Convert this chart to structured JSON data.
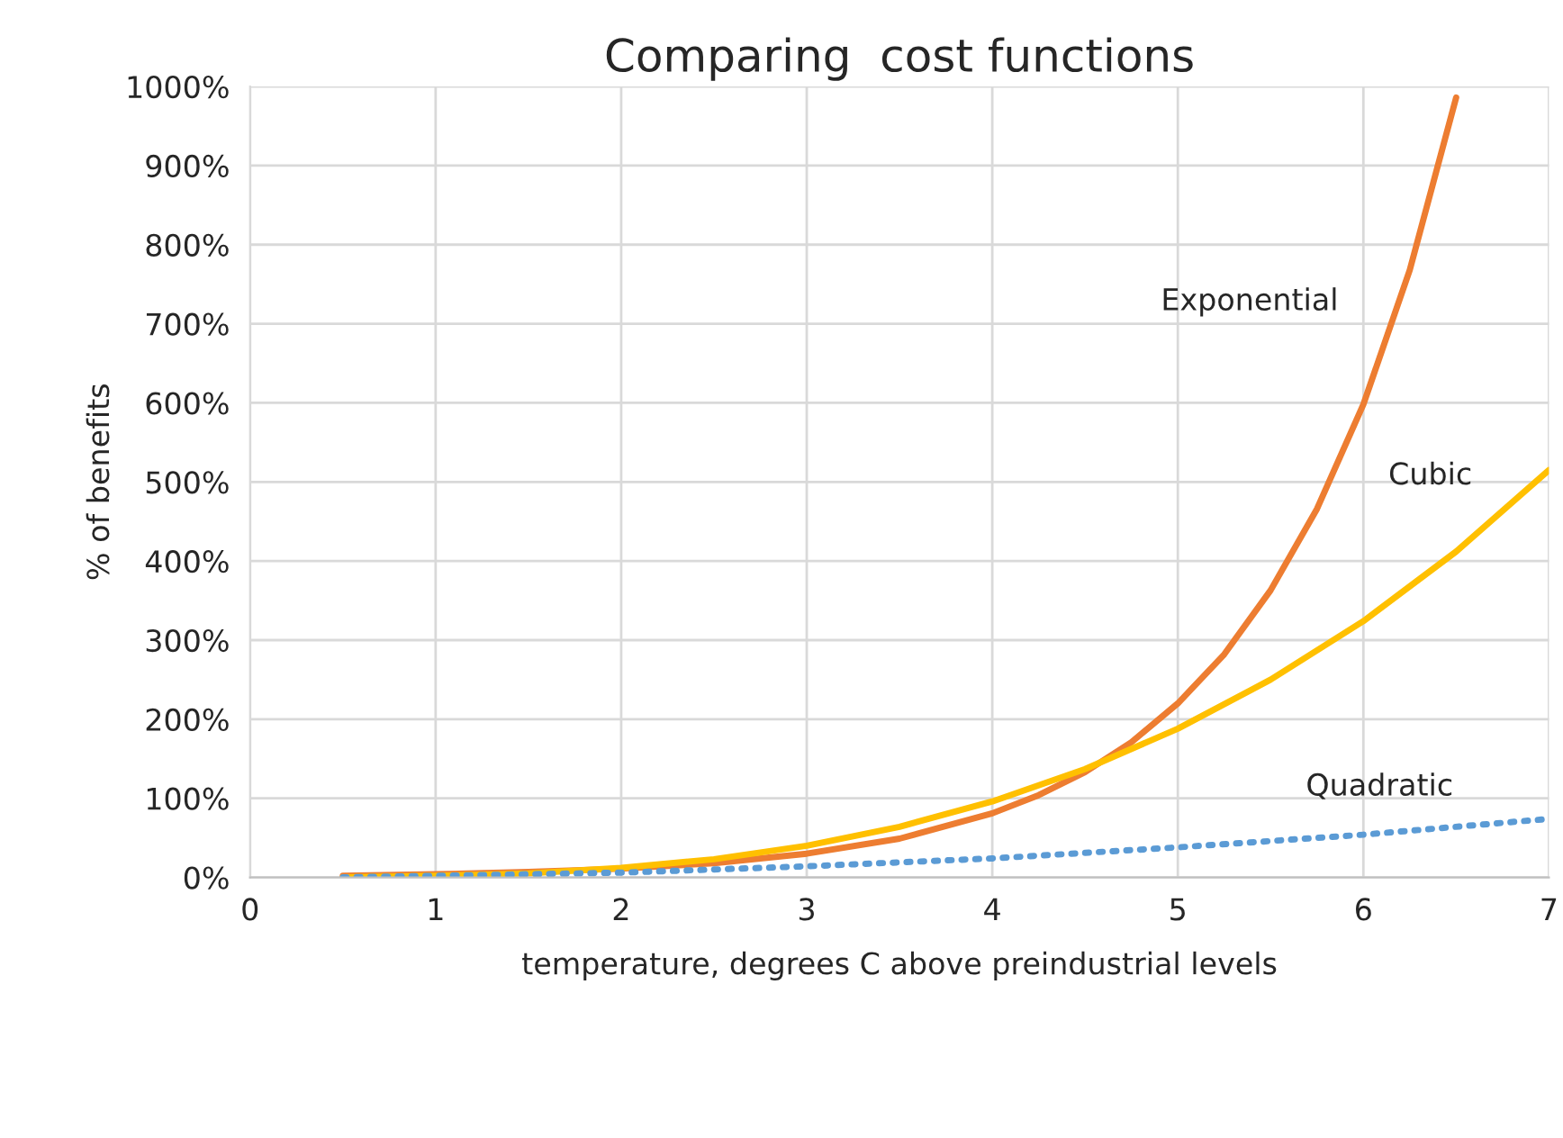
{
  "chart_data": {
    "type": "line",
    "title": "Comparing  cost functions",
    "xlabel": "temperature, degrees C above preindustrial levels",
    "ylabel": "% of benefits",
    "xlim": [
      0,
      7
    ],
    "xticks": [
      0,
      1,
      2,
      3,
      4,
      5,
      6,
      7
    ],
    "ylim": [
      0,
      1000
    ],
    "yticks": [
      {
        "value": 0,
        "label": "0%"
      },
      {
        "value": 100,
        "label": "100%"
      },
      {
        "value": 200,
        "label": "200%"
      },
      {
        "value": 300,
        "label": "300%"
      },
      {
        "value": 400,
        "label": "400%"
      },
      {
        "value": 500,
        "label": "500%"
      },
      {
        "value": 600,
        "label": "600%"
      },
      {
        "value": 700,
        "label": "700%"
      },
      {
        "value": 800,
        "label": "800%"
      },
      {
        "value": 900,
        "label": "900%"
      },
      {
        "value": 1000,
        "label": "1000%"
      }
    ],
    "grid": true,
    "marker": "none",
    "series": [
      {
        "name": "Exponential",
        "color": "#ed7d31",
        "line_style": "solid",
        "x": [
          0.5,
          1,
          1.5,
          2,
          2.5,
          3,
          3.5,
          4,
          4.25,
          4.5,
          4.75,
          5,
          5.25,
          5.5,
          5.75,
          6,
          6.25,
          6.5
        ],
        "values": [
          2,
          4,
          7,
          11,
          18,
          30,
          49,
          81,
          104,
          133,
          171,
          220,
          282,
          363,
          466,
          598,
          768,
          986
        ]
      },
      {
        "name": "Cubic",
        "color": "#ffc000",
        "line_style": "solid",
        "x": [
          0.5,
          1,
          1.5,
          2,
          2.5,
          3,
          3.5,
          4,
          4.5,
          5,
          5.5,
          6,
          6.5,
          7
        ],
        "values": [
          0,
          2,
          5,
          12,
          23,
          40,
          64,
          96,
          137,
          188,
          250,
          324,
          412,
          515
        ]
      },
      {
        "name": "Quadratic",
        "color": "#5b9bd5",
        "line_style": "dotted",
        "x": [
          0.5,
          1,
          2,
          3,
          4,
          5,
          6,
          7
        ],
        "values": [
          0,
          2,
          6,
          14,
          24,
          38,
          54,
          74
        ]
      }
    ]
  }
}
